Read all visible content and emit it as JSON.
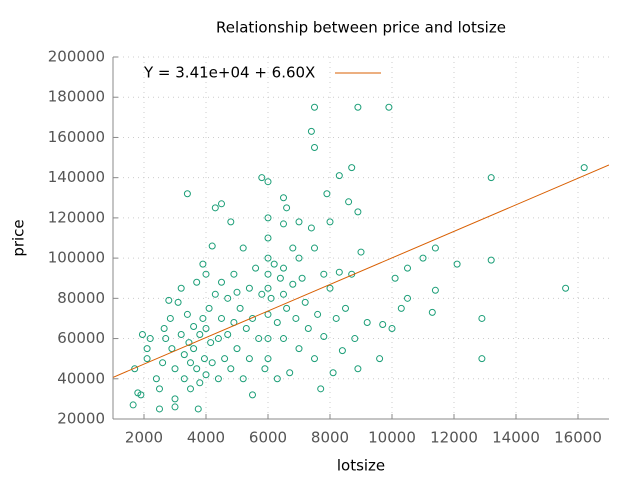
{
  "chart_data": {
    "type": "scatter",
    "title": "Relationship between price and lotsize",
    "x_label": "lotsize",
    "y_label": "price",
    "xlim": [
      1000,
      17000
    ],
    "ylim": [
      20000,
      200000
    ],
    "xticks": [
      2000,
      4000,
      6000,
      8000,
      10000,
      12000,
      14000,
      16000
    ],
    "yticks": [
      20000,
      40000,
      60000,
      80000,
      100000,
      120000,
      140000,
      160000,
      180000,
      200000
    ],
    "grid": true,
    "legend": "top-left",
    "color": "#1b9e77",
    "x": [
      1650,
      1700,
      1800,
      1900,
      1950,
      2100,
      2200,
      2100,
      2400,
      2500,
      2500,
      2600,
      2650,
      2700,
      2800,
      2850,
      2900,
      3000,
      3000,
      3000,
      3100,
      3200,
      3200,
      3300,
      3300,
      3400,
      3400,
      3450,
      3500,
      3500,
      3600,
      3600,
      3700,
      3700,
      3750,
      3800,
      3800,
      3900,
      3900,
      3950,
      4000,
      4000,
      4000,
      4100,
      4150,
      4200,
      4200,
      4300,
      4300,
      4400,
      4400,
      4500,
      4500,
      4500,
      4600,
      4700,
      4700,
      4800,
      4800,
      4900,
      4900,
      5000,
      5000,
      5100,
      5200,
      5200,
      5300,
      5400,
      5400,
      5500,
      5500,
      5600,
      5700,
      5800,
      5800,
      5900,
      6000,
      6000,
      6000,
      6000,
      6000,
      6000,
      6000,
      6000,
      6000,
      6100,
      6200,
      6300,
      6300,
      6400,
      6500,
      6500,
      6500,
      6500,
      6500,
      6600,
      6600,
      6700,
      6800,
      6800,
      6900,
      7000,
      7000,
      7000,
      7100,
      7200,
      7300,
      7400,
      7400,
      7500,
      7500,
      7500,
      7500,
      7600,
      7700,
      7800,
      7800,
      7900,
      8000,
      8000,
      8100,
      8200,
      8300,
      8300,
      8400,
      8500,
      8600,
      8700,
      8700,
      8800,
      8900,
      8900,
      8900,
      9000,
      9200,
      9600,
      9700,
      9900,
      10000,
      10100,
      10300,
      10500,
      10500,
      11000,
      11300,
      11400,
      11400,
      12100,
      12900,
      12900,
      13200,
      13200,
      15600,
      16200
    ],
    "values": [
      27000,
      45000,
      33000,
      32000,
      62000,
      50000,
      60000,
      55000,
      40000,
      25000,
      35000,
      48000,
      65000,
      60000,
      79000,
      70000,
      55000,
      45000,
      30000,
      26000,
      78000,
      85000,
      62000,
      52000,
      40000,
      132000,
      72000,
      58000,
      48000,
      35000,
      66000,
      55000,
      88000,
      45000,
      25000,
      62000,
      38000,
      97000,
      70000,
      50000,
      92000,
      65000,
      42000,
      75000,
      58000,
      106000,
      48000,
      125000,
      82000,
      60000,
      40000,
      127000,
      88000,
      70000,
      50000,
      80000,
      62000,
      118000,
      45000,
      92000,
      68000,
      83000,
      55000,
      75000,
      105000,
      40000,
      65000,
      85000,
      50000,
      32000,
      70000,
      95000,
      60000,
      140000,
      82000,
      45000,
      138000,
      120000,
      110000,
      100000,
      92000,
      85000,
      72000,
      60000,
      50000,
      80000,
      97000,
      68000,
      40000,
      90000,
      130000,
      117000,
      95000,
      82000,
      60000,
      125000,
      75000,
      43000,
      105000,
      87000,
      70000,
      118000,
      100000,
      55000,
      90000,
      78000,
      65000,
      163000,
      115000,
      175000,
      155000,
      105000,
      50000,
      72000,
      35000,
      92000,
      61000,
      132000,
      118000,
      85000,
      43000,
      70000,
      141000,
      93000,
      54000,
      75000,
      128000,
      145000,
      92000,
      60000,
      175000,
      123000,
      45000,
      103000,
      68000,
      50000,
      67000,
      175000,
      65000,
      90000,
      75000,
      80000,
      95000,
      100000,
      73000,
      105000,
      84000,
      97000,
      70000,
      50000,
      140000,
      99000,
      85000,
      145000
    ],
    "fit": {
      "label": "Y = 3.41e+04 + 6.60X",
      "intercept": 34100,
      "slope": 6.6,
      "color": "#d95f02"
    }
  }
}
